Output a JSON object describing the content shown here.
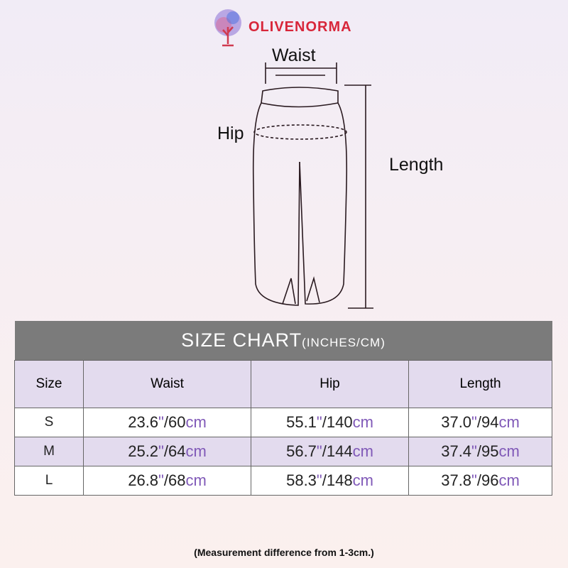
{
  "brand": {
    "name": "OLIVENORMA",
    "logo_icon": "tree-icon"
  },
  "diagram": {
    "waist": "Waist",
    "hip": "Hip",
    "length": "Length"
  },
  "table": {
    "title": "SIZE CHART",
    "title_units": "(INCHES/CM)",
    "headers": [
      "Size",
      "Waist",
      "Hip",
      "Length"
    ],
    "units": {
      "inch": "\"",
      "cm": "cm"
    },
    "rows": [
      {
        "size": "S",
        "waist": {
          "in": "23.6",
          "cm": "/60"
        },
        "hip": {
          "in": "55.1",
          "cm": "/140"
        },
        "length": {
          "in": "37.0",
          "cm": "/94"
        }
      },
      {
        "size": "M",
        "waist": {
          "in": "25.2",
          "cm": "/64"
        },
        "hip": {
          "in": "56.7",
          "cm": "/144"
        },
        "length": {
          "in": "37.4",
          "cm": "/95"
        }
      },
      {
        "size": "L",
        "waist": {
          "in": "26.8",
          "cm": "/68"
        },
        "hip": {
          "in": "58.3",
          "cm": "/148"
        },
        "length": {
          "in": "37.8",
          "cm": "/96"
        }
      }
    ],
    "unit_color": "#8059b8",
    "header_bg": "#7b7b7b",
    "row_alt_bg": "#e3dbee"
  },
  "note": "(Measurement difference from 1-3cm.)"
}
